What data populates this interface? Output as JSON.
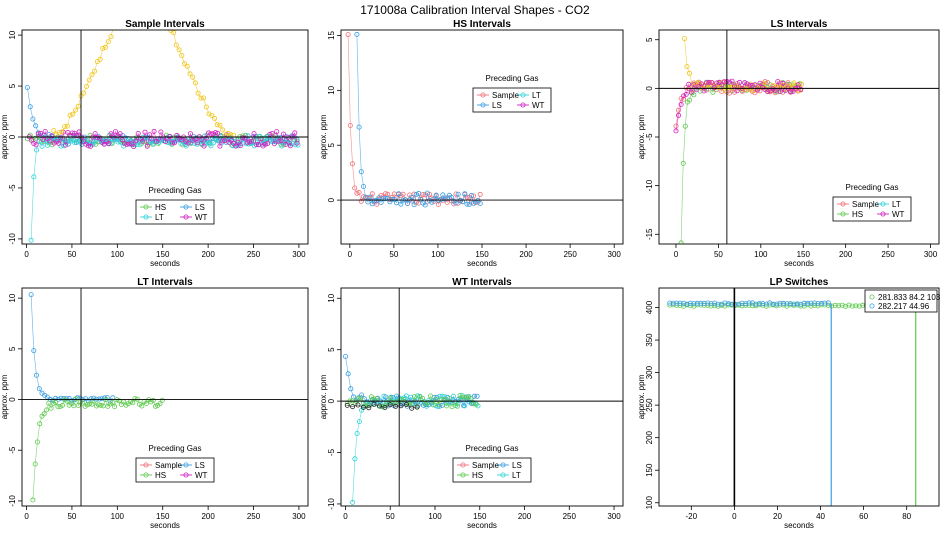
{
  "title": "171008a   Calibration Interval Shapes - CO2",
  "colors": {
    "Sample": "#f1707a",
    "HS": "#60c950",
    "LS": "#3a9ee3",
    "LT": "#2fd3d8",
    "WT": "#d321c2",
    "yellow": "#efc51a",
    "dark": "#222222"
  },
  "chart_data": [
    {
      "type": "scatter",
      "title": "Sample Intervals",
      "xlabel": "seconds",
      "ylabel": "approx. ppm",
      "xlim": [
        -5,
        310
      ],
      "ylim": [
        -10.5,
        10.5
      ],
      "xticks": [
        0,
        50,
        100,
        150,
        200,
        250,
        300
      ],
      "yticks": [
        -10,
        -5,
        0,
        5,
        10
      ],
      "vline": 60,
      "hline": 0,
      "legend": {
        "title": "Preceding Gas",
        "position": "bottom-center",
        "entries": [
          "HS",
          "LS",
          "LT",
          "WT"
        ]
      },
      "series": [
        {
          "name": "HS",
          "shape": "flat",
          "start": -0.4,
          "end": -0.3,
          "tau": 5,
          "noise": 0.5,
          "x0": 1,
          "x1": 300,
          "dx": 3
        },
        {
          "name": "LS",
          "shape": "decay",
          "start": 4.8,
          "end": -0.3,
          "tau": 6,
          "noise": 0.45,
          "x0": 1,
          "x1": 300,
          "dx": 3
        },
        {
          "name": "LT",
          "shape": "decay",
          "start": -10.2,
          "end": -0.4,
          "tau": 3,
          "noise": 0.5,
          "x0": 5,
          "x1": 300,
          "dx": 3
        },
        {
          "name": "WT",
          "shape": "flat",
          "start": 0.0,
          "end": -0.2,
          "tau": 5,
          "noise": 0.75,
          "x0": 3,
          "x1": 300,
          "dx": 2.5
        },
        {
          "name": "yellow",
          "shape": "hump",
          "start": 0.5,
          "end": 0.5,
          "tau": 5,
          "noise": 0.4,
          "x0": 30,
          "x1": 230,
          "dx": 3
        }
      ]
    },
    {
      "type": "scatter",
      "title": "HS Intervals",
      "xlabel": "seconds",
      "ylabel": "approx. ppm",
      "xlim": [
        -10,
        310
      ],
      "ylim": [
        -4,
        15.5
      ],
      "xticks": [
        0,
        50,
        100,
        150,
        200,
        250,
        300
      ],
      "yticks": [
        0,
        5,
        10,
        15
      ],
      "vline": null,
      "hline": 0,
      "legend": {
        "title": "Preceding Gas",
        "position": "top-center",
        "entries": [
          "Sample",
          "LT",
          "LS",
          "WT"
        ]
      },
      "series": [
        {
          "name": "Sample",
          "shape": "decay",
          "start": 15,
          "end": 0.1,
          "tau": 3,
          "noise": 0.5,
          "x0": -2,
          "x1": 150,
          "dx": 2.5
        },
        {
          "name": "LS",
          "shape": "decay",
          "start": 15,
          "end": 0.1,
          "tau": 3,
          "noise": 0.55,
          "x0": 8,
          "x1": 150,
          "dx": 2.5
        }
      ]
    },
    {
      "type": "scatter",
      "title": "LS Intervals",
      "xlabel": "seconds",
      "ylabel": "approx. ppm",
      "xlim": [
        -20,
        310
      ],
      "ylim": [
        -16,
        6
      ],
      "xticks": [
        0,
        50,
        100,
        150,
        200,
        250,
        300
      ],
      "yticks": [
        -15,
        -10,
        -5,
        0,
        5
      ],
      "vline": 60,
      "hline": 0,
      "legend": {
        "title": "Preceding Gas",
        "position": "bottom-right",
        "entries": [
          "Sample",
          "LT",
          "HS",
          "WT"
        ]
      },
      "series": [
        {
          "name": "HS",
          "shape": "decay",
          "start": -16,
          "end": 0.1,
          "tau": 3.5,
          "noise": 0.55,
          "x0": 6,
          "x1": 148,
          "dx": 2.5
        },
        {
          "name": "Sample",
          "shape": "decay",
          "start": -4,
          "end": 0.1,
          "tau": 5,
          "noise": 0.6,
          "x0": 0,
          "x1": 148,
          "dx": 3
        },
        {
          "name": "yellow",
          "shape": "decay",
          "start": 5,
          "end": 0.2,
          "tau": 4,
          "noise": 0.5,
          "x0": 10,
          "x1": 148,
          "dx": 3
        },
        {
          "name": "WT",
          "shape": "decay",
          "start": -4.5,
          "end": 0.2,
          "tau": 5,
          "noise": 0.55,
          "x0": 0,
          "x1": 148,
          "dx": 3
        }
      ]
    },
    {
      "type": "scatter",
      "title": "LT Intervals",
      "xlabel": "seconds",
      "ylabel": "approx. ppm",
      "xlim": [
        -5,
        310
      ],
      "ylim": [
        -10.5,
        11
      ],
      "xticks": [
        0,
        50,
        100,
        150,
        200,
        250,
        300
      ],
      "yticks": [
        -10,
        -5,
        0,
        5,
        10
      ],
      "vline": 60,
      "hline": 0,
      "legend": {
        "title": "Preceding Gas",
        "position": "bottom-center",
        "entries": [
          "Sample",
          "LS",
          "HS",
          "WT"
        ]
      },
      "series": [
        {
          "name": "LS",
          "shape": "decay",
          "start": 10.3,
          "end": 0.0,
          "tau": 4,
          "noise": 0.2,
          "x0": 5,
          "x1": 95,
          "dx": 3
        },
        {
          "name": "HS",
          "shape": "decay",
          "start": -10,
          "end": -0.3,
          "tau": 5,
          "noise": 0.4,
          "x0": 7,
          "x1": 150,
          "dx": 2.5
        }
      ]
    },
    {
      "type": "scatter",
      "title": "WT Intervals",
      "xlabel": "seconds",
      "ylabel": "approx. ppm",
      "xlim": [
        -5,
        310
      ],
      "ylim": [
        -10.2,
        11
      ],
      "xticks": [
        0,
        50,
        100,
        150,
        200,
        250,
        300
      ],
      "yticks": [
        -10,
        -5,
        0,
        5,
        10
      ],
      "vline": 60,
      "hline": 0,
      "legend": {
        "title": "Preceding Gas",
        "position": "bottom-center",
        "entries": [
          "Sample",
          "LS",
          "HS",
          "LT"
        ]
      },
      "series": [
        {
          "name": "LT",
          "shape": "decay",
          "start": -10,
          "end": 0.0,
          "tau": 4,
          "noise": 0.55,
          "x0": 8,
          "x1": 148,
          "dx": 2.5
        },
        {
          "name": "LS",
          "shape": "decay",
          "start": 4.2,
          "end": 0.0,
          "tau": 5,
          "noise": 0.5,
          "x0": 0,
          "x1": 148,
          "dx": 3
        },
        {
          "name": "HS",
          "shape": "decay",
          "start": -0.4,
          "end": 0.0,
          "tau": 5,
          "noise": 0.55,
          "x0": 2,
          "x1": 148,
          "dx": 3
        },
        {
          "name": "dark",
          "shape": "flat",
          "start": -0.6,
          "end": -0.6,
          "tau": 5,
          "noise": 0.3,
          "x0": 2,
          "x1": 80,
          "dx": 6
        }
      ]
    },
    {
      "type": "scatter",
      "title": "LP Switches",
      "xlabel": "",
      "ylabel": "approx. ppm",
      "xlim": [
        -35,
        95
      ],
      "ylim": [
        95,
        430
      ],
      "xticks": [
        -20,
        0,
        20,
        40,
        60,
        80
      ],
      "yticks": [
        100,
        150,
        200,
        250,
        300,
        350,
        400
      ],
      "vline": 0,
      "hline": null,
      "legend": {
        "title": "",
        "position": "top-right",
        "entries": [
          "281.833 84.2 103",
          "282.217 44.96"
        ]
      },
      "series": [
        {
          "name": "HS",
          "shape": "level",
          "level": 403,
          "noise": 1.2,
          "x0": -30,
          "x1": 84,
          "dx": 1.6,
          "drop_x": 84.2
        },
        {
          "name": "LS",
          "shape": "level",
          "level": 406,
          "noise": 1.2,
          "x0": -30,
          "x1": 45,
          "dx": 1.6,
          "drop_x": 44.96
        }
      ]
    }
  ]
}
